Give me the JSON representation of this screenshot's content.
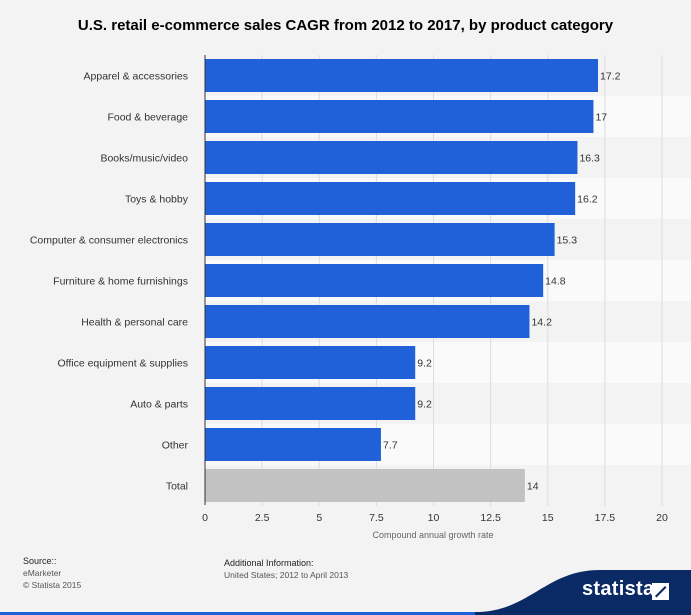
{
  "chart_data": {
    "type": "bar",
    "orientation": "horizontal",
    "title": "U.S. retail e-commerce sales CAGR from 2012 to 2017, by product category",
    "xlabel": "Compound annual growth rate",
    "ylabel": "",
    "xlim": [
      0,
      20
    ],
    "xticks": [
      "0",
      "2.5",
      "5",
      "7.5",
      "10",
      "12.5",
      "15",
      "17.5",
      "20"
    ],
    "categories": [
      "Apparel & accessories",
      "Food & beverage",
      "Books/music/video",
      "Toys & hobby",
      "Computer & consumer electronics",
      "Furniture & home furnishings",
      "Health & personal care",
      "Office equipment & supplies",
      "Auto & parts",
      "Other",
      "Total"
    ],
    "values": [
      17.2,
      17,
      16.3,
      16.2,
      15.3,
      14.8,
      14.2,
      9.2,
      9.2,
      7.7,
      14
    ],
    "value_labels": [
      "17.2",
      "17",
      "16.3",
      "16.2",
      "15.3",
      "14.8",
      "14.2",
      "9.2",
      "9.2",
      "7.7",
      "14"
    ],
    "bar_color": "#2060d8",
    "total_color": "#c2c2c2",
    "grid": true,
    "legend": "none"
  },
  "footer": {
    "source_label": "Source::",
    "source_name": "eMarketer",
    "copyright": "© Statista 2015",
    "additional_label": "Additional Information:",
    "additional_text": "United States; 2012 to April 2013"
  },
  "brand": {
    "name": "statista",
    "color": "#0a2a66"
  }
}
